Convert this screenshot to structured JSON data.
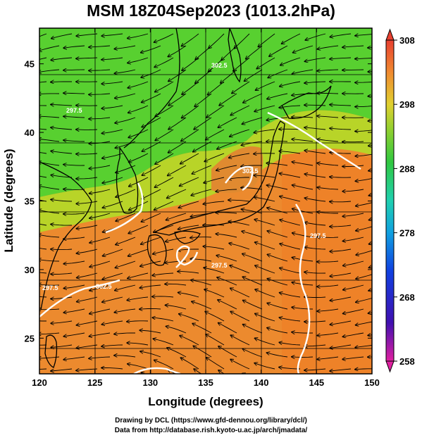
{
  "title": "MSM 18Z04Sep2023 (1013.2hPa)",
  "xaxis": {
    "label": "Longitude (degrees)",
    "range": [
      120,
      150
    ],
    "ticks": [
      "120",
      "125",
      "130",
      "135",
      "140",
      "145",
      "150"
    ],
    "tick_values": [
      120,
      125,
      130,
      135,
      140,
      145,
      150
    ]
  },
  "yaxis": {
    "label": "Latitude  (degrees)",
    "range": [
      22.4,
      47.6
    ],
    "ticks": [
      "25",
      "30",
      "35",
      "40",
      "45"
    ],
    "tick_values": [
      25,
      30,
      35,
      40,
      45
    ]
  },
  "colorbar": {
    "range": [
      258,
      308
    ],
    "labels": [
      "308",
      "298",
      "288",
      "278",
      "268",
      "258"
    ],
    "label_values": [
      308,
      298,
      288,
      278,
      268,
      258
    ]
  },
  "map": {
    "field": "temperature with streamlines",
    "grid": true,
    "contour_labels": [
      "297.5",
      "297.5",
      "297.5",
      "297.5",
      "302.5",
      "302.5",
      "302.5"
    ]
  },
  "credits": {
    "line1": "Drawing by DCL (https://www.gfd-dennou.org/library/dcl/)",
    "line2": "Data from http://database.rish.kyoto-u.ac.jp/arch/jmadata/"
  },
  "colors": {
    "land_green": "#4ccc2a",
    "yellow": "#c8d82c",
    "orange": "#e8882c",
    "warm": "#f07830",
    "contour": "#ffffff"
  }
}
